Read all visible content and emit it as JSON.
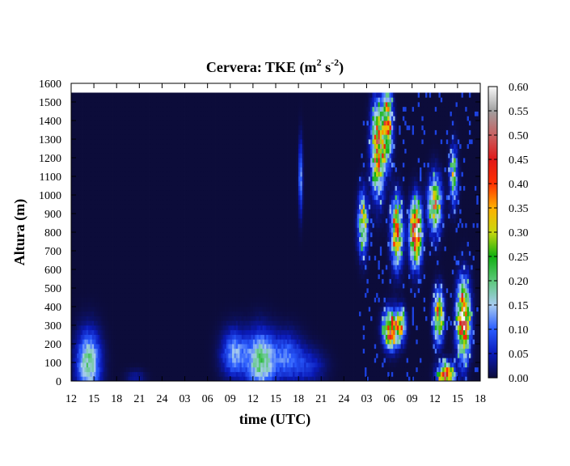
{
  "chart_data": {
    "type": "heatmap",
    "title": {
      "prefix": "Cervera: TKE (m",
      "sup1": "2",
      "mid": " s",
      "sup2": "-2",
      "suffix": ")"
    },
    "xlabel": "time (UTC)",
    "ylabel": "Altura (m)",
    "x_ticks": [
      "12",
      "15",
      "18",
      "21",
      "24",
      "03",
      "06",
      "09",
      "12",
      "15",
      "18",
      "21",
      "24",
      "03",
      "06",
      "09",
      "12",
      "15",
      "18"
    ],
    "y_ticks": [
      0,
      100,
      200,
      300,
      400,
      500,
      600,
      700,
      800,
      900,
      1000,
      1100,
      1200,
      1300,
      1400,
      1500,
      1600
    ],
    "xlim_hours": [
      0,
      54
    ],
    "ylim": [
      0,
      1600
    ],
    "data_top": 1550,
    "colorbar": {
      "ticks": [
        "0.00",
        "0.05",
        "0.10",
        "0.15",
        "0.20",
        "0.25",
        "0.30",
        "0.35",
        "0.40",
        "0.45",
        "0.50",
        "0.55",
        "0.60"
      ],
      "range": [
        0,
        0.6
      ],
      "stops": [
        {
          "v": 0.0,
          "color": "#0c0c3a"
        },
        {
          "v": 0.05,
          "color": "#0a1ab8"
        },
        {
          "v": 0.1,
          "color": "#2a5cff"
        },
        {
          "v": 0.15,
          "color": "#a8ccf0"
        },
        {
          "v": 0.2,
          "color": "#5cc87a"
        },
        {
          "v": 0.25,
          "color": "#10b010"
        },
        {
          "v": 0.3,
          "color": "#c8d810"
        },
        {
          "v": 0.35,
          "color": "#ffb000"
        },
        {
          "v": 0.4,
          "color": "#ff3000"
        },
        {
          "v": 0.45,
          "color": "#e01818"
        },
        {
          "v": 0.5,
          "color": "#c86060"
        },
        {
          "v": 0.55,
          "color": "#a0a0a0"
        },
        {
          "v": 0.6,
          "color": "#f8f8f8"
        }
      ]
    },
    "features": [
      {
        "name": "afternoon-blob-day1",
        "t": 2.3,
        "z": 100,
        "dt": 1.5,
        "dz": 160,
        "amp": 0.29
      },
      {
        "name": "night-weak-day1",
        "t": 8.5,
        "z": 20,
        "dt": 1.2,
        "dz": 40,
        "amp": 0.06
      },
      {
        "name": "morning-band-day2",
        "t": 21.5,
        "z": 150,
        "dt": 1.6,
        "dz": 120,
        "amp": 0.2
      },
      {
        "name": "noon-blob-day2",
        "t": 25.0,
        "z": 110,
        "dt": 1.8,
        "dz": 150,
        "amp": 0.3
      },
      {
        "name": "afternoon-band-day2",
        "t": 28.5,
        "z": 130,
        "dt": 2.0,
        "dz": 120,
        "amp": 0.16
      },
      {
        "name": "evening-fade-day2",
        "t": 31.5,
        "z": 80,
        "dt": 2.0,
        "dz": 90,
        "amp": 0.09
      },
      {
        "name": "isolated-column",
        "t": 30.3,
        "z": 1100,
        "dt": 0.25,
        "dz": 180,
        "amp": 0.2
      },
      {
        "name": "upper-chaotic-1",
        "t": 40.5,
        "z": 1250,
        "dt": 0.8,
        "dz": 220,
        "amp": 0.42
      },
      {
        "name": "upper-chaotic-2",
        "t": 41.8,
        "z": 1380,
        "dt": 0.6,
        "dz": 180,
        "amp": 0.35
      },
      {
        "name": "mid-chaotic-1",
        "t": 43.0,
        "z": 800,
        "dt": 0.7,
        "dz": 160,
        "amp": 0.38
      },
      {
        "name": "mid-chaotic-2",
        "t": 45.5,
        "z": 800,
        "dt": 0.7,
        "dz": 150,
        "amp": 0.55
      },
      {
        "name": "mid-chaotic-3",
        "t": 38.5,
        "z": 850,
        "dt": 0.6,
        "dz": 150,
        "amp": 0.26
      },
      {
        "name": "lower-cell-1",
        "t": 42.2,
        "z": 280,
        "dt": 0.9,
        "dz": 90,
        "amp": 0.42
      },
      {
        "name": "lower-cell-2",
        "t": 43.5,
        "z": 300,
        "dt": 0.6,
        "dz": 80,
        "amp": 0.3
      },
      {
        "name": "late-cell-1",
        "t": 48.5,
        "z": 350,
        "dt": 0.6,
        "dz": 120,
        "amp": 0.4
      },
      {
        "name": "late-cell-2",
        "t": 51.8,
        "z": 330,
        "dt": 0.8,
        "dz": 180,
        "amp": 0.52
      },
      {
        "name": "late-surface",
        "t": 49.5,
        "z": 30,
        "dt": 1.0,
        "dz": 60,
        "amp": 0.45
      },
      {
        "name": "late-upper",
        "t": 48.0,
        "z": 950,
        "dt": 0.8,
        "dz": 140,
        "amp": 0.32
      },
      {
        "name": "late-upper-2",
        "t": 50.5,
        "z": 1100,
        "dt": 0.5,
        "dz": 140,
        "amp": 0.22
      }
    ]
  }
}
